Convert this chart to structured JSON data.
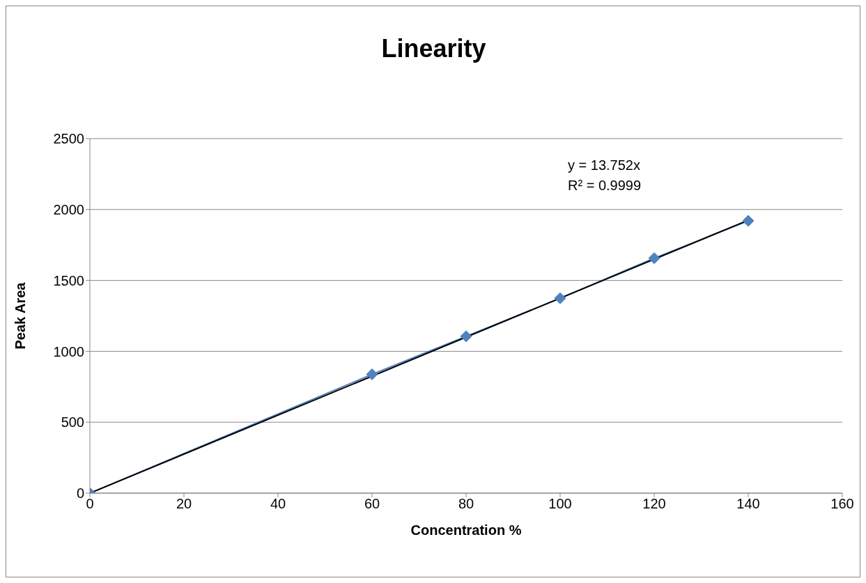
{
  "chart_data": {
    "type": "line",
    "title": "Linearity",
    "xlabel": "Concentration %",
    "ylabel": "Peak Area",
    "x": [
      0,
      60,
      80,
      100,
      120,
      140
    ],
    "series": [
      {
        "color": "#4f81bd",
        "values": [
          0,
          838,
          1106,
          1374,
          1657,
          1920
        ],
        "marker": "diamond"
      },
      {
        "color": "#000000",
        "x": [
          0,
          140
        ],
        "values": [
          0,
          1925
        ],
        "marker": "none"
      }
    ],
    "xlim": [
      0,
      160
    ],
    "xticks": [
      0,
      20,
      40,
      60,
      80,
      100,
      120,
      140,
      160
    ],
    "ylim": [
      0,
      2500
    ],
    "yticks": [
      0,
      500,
      1000,
      1500,
      2000,
      2500
    ],
    "grid": "y",
    "line_style": "solid",
    "annotations": [
      "y = 13.752x",
      "R² = 0.9999"
    ]
  }
}
